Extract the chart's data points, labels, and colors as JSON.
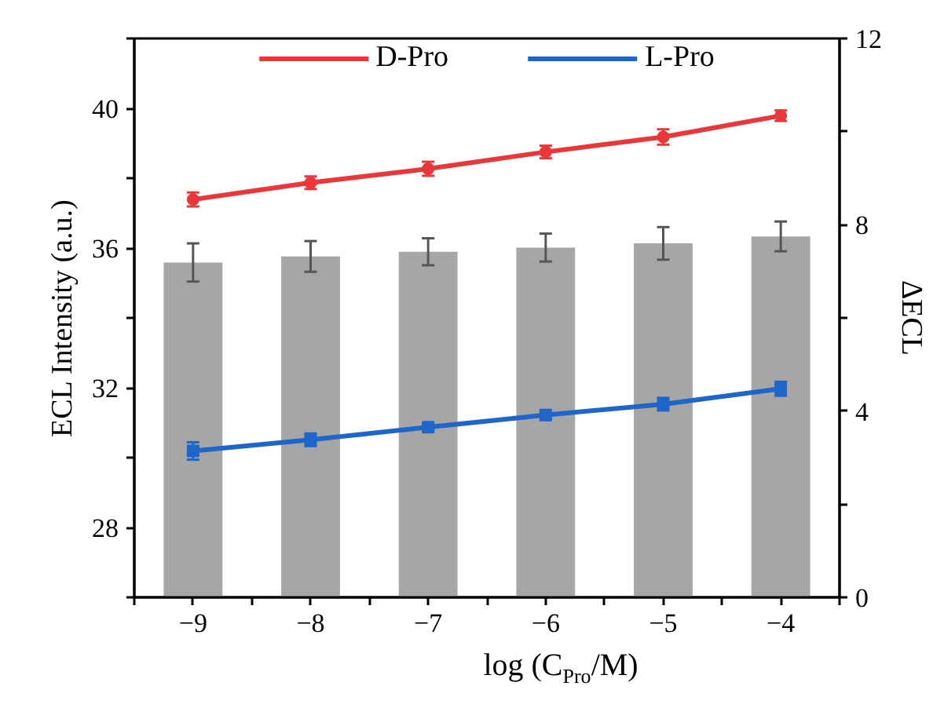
{
  "chart_data": {
    "type": "line",
    "xlabel": "log (C$_{Pro}$/M)",
    "ylabel": "ECL Intensity (a.u.)",
    "y2label": "ΔECL",
    "x": [
      -9,
      -8,
      -7,
      -6,
      -5,
      -4
    ],
    "xlim": [
      -9.5,
      -3.5
    ],
    "xticks": [
      {
        "value": -9.5,
        "label": null
      },
      -9,
      {
        "value": -8.5,
        "label": null
      },
      -8,
      {
        "value": -7.5,
        "label": null
      },
      -7,
      {
        "value": -6.5,
        "label": null
      },
      -6,
      {
        "value": -5.5,
        "label": null
      },
      -5,
      {
        "value": -4.5,
        "label": null
      },
      -4,
      {
        "value": -3.5,
        "label": null
      }
    ],
    "ylim": [
      26,
      42
    ],
    "yticks": [
      {
        "value": 26,
        "label": null
      },
      28,
      {
        "value": 30,
        "label": null
      },
      32,
      {
        "value": 34,
        "label": null
      },
      36,
      {
        "value": 38,
        "label": null
      },
      40,
      {
        "value": 42,
        "label": null
      }
    ],
    "y2lim": [
      0,
      12
    ],
    "y2ticks": [
      0,
      {
        "value": 2,
        "label": null
      },
      4,
      {
        "value": 6,
        "label": null
      },
      8,
      {
        "value": 10,
        "label": null
      },
      12
    ],
    "series": [
      {
        "type": "bar",
        "axis": "y2",
        "color": "#a6a6a6",
        "values": [
          7.19,
          7.32,
          7.42,
          7.51,
          7.6,
          7.75
        ],
        "errors": [
          0.41,
          0.33,
          0.29,
          0.3,
          0.35,
          0.32
        ]
      },
      {
        "name": "D-Pro",
        "marker": "circle",
        "color": "#e8383b",
        "values": [
          37.39,
          37.87,
          38.27,
          38.75,
          39.18,
          39.79
        ],
        "errors": [
          0.2,
          0.18,
          0.2,
          0.18,
          0.22,
          0.15
        ]
      },
      {
        "name": "L-Pro",
        "marker": "square",
        "color": "#1f66c9",
        "values": [
          30.19,
          30.51,
          30.87,
          31.22,
          31.53,
          31.97
        ],
        "errors": [
          0.25,
          0.18,
          0.12,
          0.14,
          0.18,
          0.2
        ]
      }
    ],
    "grid": false,
    "legend": "top"
  }
}
